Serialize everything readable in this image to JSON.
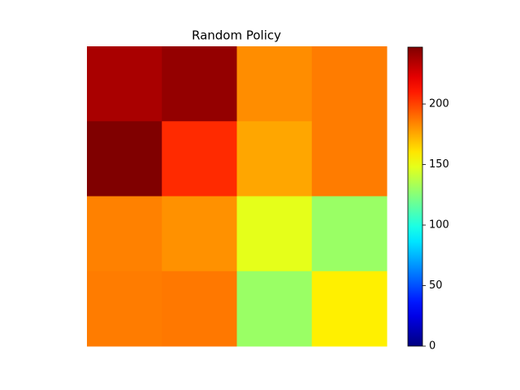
{
  "chart_data": {
    "type": "heatmap",
    "title": "Random Policy",
    "z": [
      [
        237,
        242,
        182,
        186
      ],
      [
        247,
        206,
        176,
        186
      ],
      [
        185,
        181,
        148,
        130
      ],
      [
        186,
        187,
        130,
        158
      ]
    ],
    "colormap": "jet",
    "clim": [
      0,
      247
    ],
    "cticks": [
      0,
      50,
      100,
      150,
      200
    ]
  }
}
